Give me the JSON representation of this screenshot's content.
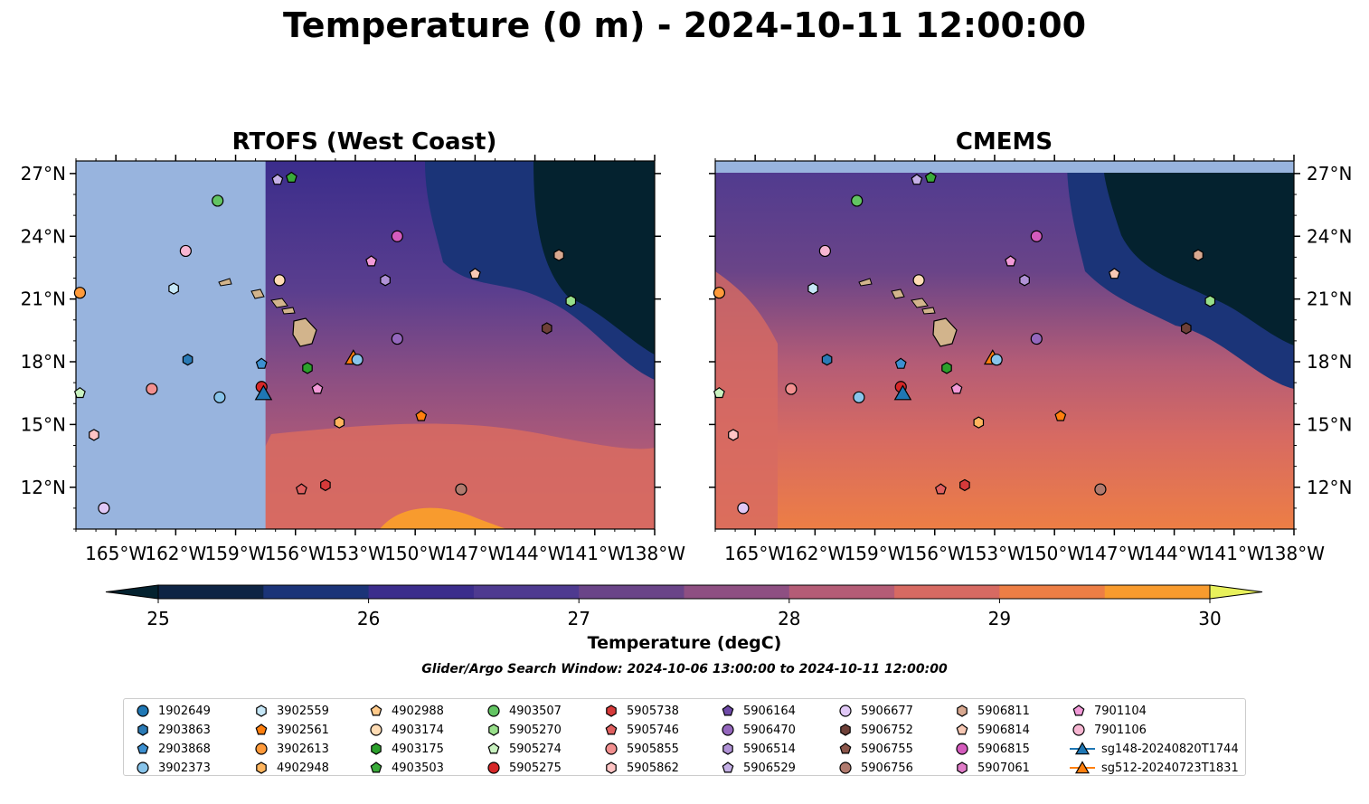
{
  "title": "Temperature (0 m) - 2024-10-11 12:00:00",
  "panels": [
    {
      "title": "RTOFS (West Coast)",
      "mask_lon_max": -157.5,
      "top_strip": false
    },
    {
      "title": "CMEMS",
      "mask_lon_max": null,
      "top_strip": true
    }
  ],
  "map_extent": {
    "lon_min": -167,
    "lon_max": -138,
    "lat_min": 10,
    "lat_max": 27.6
  },
  "lon_ticks": [
    {
      "value": -165,
      "label": "165°W"
    },
    {
      "value": -162,
      "label": "162°W"
    },
    {
      "value": -159,
      "label": "159°W"
    },
    {
      "value": -156,
      "label": "156°W"
    },
    {
      "value": -153,
      "label": "153°W"
    },
    {
      "value": -150,
      "label": "150°W"
    },
    {
      "value": -147,
      "label": "147°W"
    },
    {
      "value": -144,
      "label": "144°W"
    },
    {
      "value": -141,
      "label": "141°W"
    },
    {
      "value": -138,
      "label": "138°W"
    }
  ],
  "lat_ticks": [
    {
      "value": 27,
      "label": "27°N"
    },
    {
      "value": 24,
      "label": "24°N"
    },
    {
      "value": 21,
      "label": "21°N"
    },
    {
      "value": 18,
      "label": "18°N"
    },
    {
      "value": 15,
      "label": "15°N"
    },
    {
      "value": 12,
      "label": "12°N"
    }
  ],
  "colorbar": {
    "min": 25,
    "max": 30,
    "ticks": [
      "25",
      "26",
      "27",
      "28",
      "29",
      "30"
    ],
    "colors": [
      "#0e2444",
      "#1b3478",
      "#3b2d8c",
      "#4e3a90",
      "#6a4488",
      "#8e4f82",
      "#b45c76",
      "#d76a62",
      "#ed7e45",
      "#f89b2e",
      "#f9c03a",
      "#e8f15c"
    ],
    "under_color": "#04222f",
    "label": "Temperature (degC)"
  },
  "search_window": "Glider/Argo Search Window: 2024-10-06 13:00:00 to 2024-10-11 12:00:00",
  "colors": {
    "land": "#d2b48c",
    "mask": "#98b4de",
    "cold": "#04222f"
  },
  "legend": [
    {
      "id": "1902649",
      "shape": "circle",
      "color": "#1f77b4"
    },
    {
      "id": "2903863",
      "shape": "hexagon",
      "color": "#2a7ab5"
    },
    {
      "id": "2903868",
      "shape": "pentagon",
      "color": "#3c8fd0"
    },
    {
      "id": "3902373",
      "shape": "circle",
      "color": "#88c4ea"
    },
    {
      "id": "3902559",
      "shape": "hexagon",
      "color": "#c6e7f7"
    },
    {
      "id": "3902561",
      "shape": "pentagon",
      "color": "#ff7f0e"
    },
    {
      "id": "3902613",
      "shape": "circle",
      "color": "#ff9a3a"
    },
    {
      "id": "4902948",
      "shape": "hexagon",
      "color": "#ffb55e"
    },
    {
      "id": "4902988",
      "shape": "pentagon",
      "color": "#ffca8a"
    },
    {
      "id": "4903174",
      "shape": "circle",
      "color": "#ffdcb4"
    },
    {
      "id": "4903175",
      "shape": "hexagon",
      "color": "#2ca02c"
    },
    {
      "id": "4903503",
      "shape": "pentagon",
      "color": "#3aab3a"
    },
    {
      "id": "4903507",
      "shape": "circle",
      "color": "#62c462"
    },
    {
      "id": "5905270",
      "shape": "hexagon",
      "color": "#98df8a"
    },
    {
      "id": "5905274",
      "shape": "pentagon",
      "color": "#c9f2c0"
    },
    {
      "id": "5905275",
      "shape": "circle",
      "color": "#d62728"
    },
    {
      "id": "5905738",
      "shape": "hexagon",
      "color": "#d63a3a"
    },
    {
      "id": "5905746",
      "shape": "pentagon",
      "color": "#e06060"
    },
    {
      "id": "5905855",
      "shape": "circle",
      "color": "#f29090"
    },
    {
      "id": "5905862",
      "shape": "hexagon",
      "color": "#ffc4c4"
    },
    {
      "id": "5906164",
      "shape": "pentagon",
      "color": "#6f4aa8"
    },
    {
      "id": "5906470",
      "shape": "circle",
      "color": "#9467bd"
    },
    {
      "id": "5906514",
      "shape": "hexagon",
      "color": "#b092d6"
    },
    {
      "id": "5906529",
      "shape": "pentagon",
      "color": "#c5b0e6"
    },
    {
      "id": "5906677",
      "shape": "circle",
      "color": "#e0c8f6"
    },
    {
      "id": "5906752",
      "shape": "hexagon",
      "color": "#6e4038"
    },
    {
      "id": "5906755",
      "shape": "pentagon",
      "color": "#8c564b"
    },
    {
      "id": "5906756",
      "shape": "circle",
      "color": "#b07a6e"
    },
    {
      "id": "5906811",
      "shape": "hexagon",
      "color": "#d8a890"
    },
    {
      "id": "5906814",
      "shape": "pentagon",
      "color": "#f7c8b4"
    },
    {
      "id": "5906815",
      "shape": "circle",
      "color": "#d45bbd"
    },
    {
      "id": "5907061",
      "shape": "hexagon",
      "color": "#e07cc8"
    },
    {
      "id": "7901104",
      "shape": "pentagon",
      "color": "#f29ad8"
    },
    {
      "id": "7901106",
      "shape": "circle",
      "color": "#f7b6d2"
    },
    {
      "id": "sg148-20240820T1744",
      "shape": "triangle",
      "color": "#1f77b4"
    },
    {
      "id": "sg512-20240723T1831",
      "shape": "triangle",
      "color": "#ff7f0e"
    }
  ],
  "markers": [
    {
      "id": "3902613",
      "lon": -166.8,
      "lat": 21.3
    },
    {
      "id": "5905274",
      "lon": -166.8,
      "lat": 16.5
    },
    {
      "id": "5905862",
      "lon": -166.1,
      "lat": 14.5
    },
    {
      "id": "5906677",
      "lon": -165.6,
      "lat": 11.0
    },
    {
      "id": "5905855",
      "lon": -163.2,
      "lat": 16.7
    },
    {
      "id": "3902559",
      "lon": -162.1,
      "lat": 21.5
    },
    {
      "id": "7901106",
      "lon": -161.5,
      "lat": 23.3
    },
    {
      "id": "2903863",
      "lon": -161.4,
      "lat": 18.1
    },
    {
      "id": "4903507",
      "lon": -159.9,
      "lat": 25.7
    },
    {
      "id": "3902373",
      "lon": -159.8,
      "lat": 16.3
    },
    {
      "id": "5906529",
      "lon": -156.9,
      "lat": 26.7
    },
    {
      "id": "4903503",
      "lon": -156.2,
      "lat": 26.8
    },
    {
      "id": "4903174",
      "lon": -156.8,
      "lat": 21.9
    },
    {
      "id": "2903868",
      "lon": -157.7,
      "lat": 17.9
    },
    {
      "id": "5905275",
      "lon": -157.7,
      "lat": 16.8
    },
    {
      "id": "sg148-20240820T1744",
      "lon": -157.6,
      "lat": 16.5
    },
    {
      "id": "4903175",
      "lon": -155.4,
      "lat": 17.7
    },
    {
      "id": "7901104",
      "lon": -154.9,
      "lat": 16.7
    },
    {
      "id": "5905746",
      "lon": -155.7,
      "lat": 11.9
    },
    {
      "id": "5905738",
      "lon": -154.5,
      "lat": 12.1
    },
    {
      "id": "4902948",
      "lon": -153.8,
      "lat": 15.1
    },
    {
      "id": "sg512-20240723T1831",
      "lon": -153.1,
      "lat": 18.2
    },
    {
      "id": "3902373",
      "lon": -152.9,
      "lat": 18.1
    },
    {
      "id": "7901104",
      "lon": -152.2,
      "lat": 22.8
    },
    {
      "id": "5906514",
      "lon": -151.5,
      "lat": 21.9
    },
    {
      "id": "5906815",
      "lon": -150.9,
      "lat": 24.0
    },
    {
      "id": "5906470",
      "lon": -150.9,
      "lat": 19.1
    },
    {
      "id": "3902561",
      "lon": -149.7,
      "lat": 15.4
    },
    {
      "id": "5906756",
      "lon": -147.7,
      "lat": 11.9
    },
    {
      "id": "5906814",
      "lon": -147.0,
      "lat": 22.2
    },
    {
      "id": "5906811",
      "lon": -142.8,
      "lat": 23.1
    },
    {
      "id": "5906752",
      "lon": -143.4,
      "lat": 19.6
    },
    {
      "id": "5905270",
      "lon": -142.2,
      "lat": 20.9
    }
  ]
}
